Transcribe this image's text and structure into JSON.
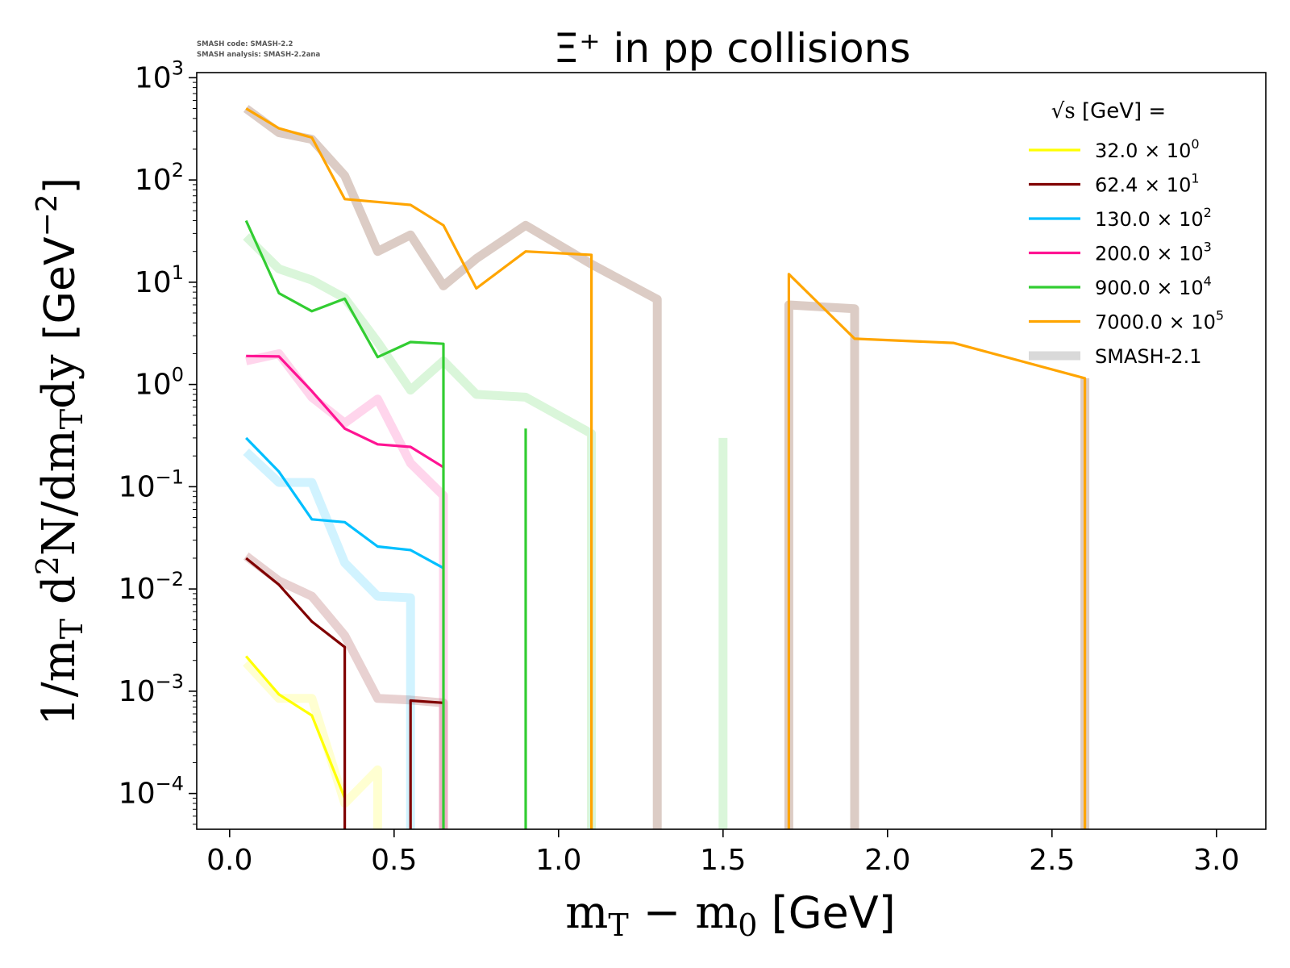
{
  "meta": {
    "watermark_line1": "SMASH code:      SMASH-2.2",
    "watermark_line2": "SMASH analysis: SMASH-2.2ana"
  },
  "chart_data": {
    "type": "line",
    "title": "Ξ⁺ in pp collisions",
    "xlabel_math": "m",
    "xlabel_sub": "T",
    "xlabel_minus": " − m",
    "xlabel_sub2": "0",
    "xlabel_unit": " [GeV]",
    "ylabel_part1": "1/m",
    "ylabel_sub1": "T",
    "ylabel_part2": " d",
    "ylabel_sup": "2",
    "ylabel_part3": "N/dm",
    "ylabel_sub2": "T",
    "ylabel_part4": "dy ",
    "ylabel_unit": "[GeV",
    "ylabel_unit_sup": "−2",
    "ylabel_unit_end": "]",
    "xlim": [
      -0.1,
      3.15
    ],
    "ylim_log10": [
      -4.35,
      3.05
    ],
    "yscale": "log",
    "x_ticks": [
      0.0,
      0.5,
      1.0,
      1.5,
      2.0,
      2.5,
      3.0
    ],
    "x_tick_labels": [
      "0.0",
      "0.5",
      "1.0",
      "1.5",
      "2.0",
      "2.5",
      "3.0"
    ],
    "y_ticks": [
      {
        "exp": 3,
        "label_base": "10",
        "label_exp": "3"
      },
      {
        "exp": 2,
        "label_base": "10",
        "label_exp": "2"
      },
      {
        "exp": 1,
        "label_base": "10",
        "label_exp": "1"
      },
      {
        "exp": 0,
        "label_base": "10",
        "label_exp": "0"
      },
      {
        "exp": -1,
        "label_base": "10",
        "label_exp": "−1"
      },
      {
        "exp": -2,
        "label_base": "10",
        "label_exp": "−2"
      },
      {
        "exp": -3,
        "label_base": "10",
        "label_exp": "−3"
      },
      {
        "exp": -4,
        "label_base": "10",
        "label_exp": "−4"
      }
    ],
    "legend": {
      "title_root": "√s",
      "title_rest": "  [GeV] =",
      "placement": "top-right"
    },
    "series": [
      {
        "name": "32.0 × 10",
        "name_exp": "0",
        "color": "#ffff00",
        "x": [
          0.05,
          0.15,
          0.25,
          0.35
        ],
        "y": [
          0.0022,
          0.00093,
          0.00058,
          9e-05
        ]
      },
      {
        "name": "62.4 × 10",
        "name_exp": "1",
        "color": "#800000",
        "x": [
          0.05,
          0.15,
          0.25,
          0.35,
          0.35,
          null,
          0.55,
          0.55,
          0.65
        ],
        "y": [
          0.02,
          0.011,
          0.0048,
          0.0027,
          1e-07,
          null,
          1e-07,
          0.00081,
          0.00077
        ]
      },
      {
        "name": "130.0 × 10",
        "name_exp": "2",
        "color": "#00bfff",
        "x": [
          0.05,
          0.15,
          0.25,
          0.35,
          0.45,
          0.55,
          0.65
        ],
        "y": [
          0.3,
          0.14,
          0.048,
          0.045,
          0.026,
          0.024,
          0.016
        ]
      },
      {
        "name": "200.0 × 10",
        "name_exp": "3",
        "color": "#ff1493",
        "x": [
          0.05,
          0.15,
          0.25,
          0.35,
          0.45,
          0.55,
          0.65
        ],
        "y": [
          1.9,
          1.88,
          0.86,
          0.37,
          0.26,
          0.245,
          0.155
        ]
      },
      {
        "name": "900.0 × 10",
        "name_exp": "4",
        "color": "#32cd32",
        "x": [
          0.05,
          0.15,
          0.25,
          0.35,
          0.45,
          0.55,
          0.65,
          0.65,
          null,
          0.9,
          0.9
        ],
        "y": [
          40,
          7.8,
          5.2,
          6.9,
          1.85,
          2.6,
          2.5,
          1e-07,
          null,
          1e-07,
          0.37
        ]
      },
      {
        "name": "7000.0 × 10",
        "name_exp": "5",
        "color": "#ffa500",
        "x": [
          0.05,
          0.15,
          0.25,
          0.35,
          0.55,
          0.65,
          0.75,
          0.9,
          1.1,
          1.1,
          null,
          1.7,
          1.7,
          1.9,
          2.2,
          2.6,
          2.6
        ],
        "y": [
          500,
          320,
          260,
          65,
          57,
          36,
          8.7,
          20,
          18.5,
          1e-07,
          null,
          1e-07,
          12,
          2.8,
          2.55,
          1.15,
          1e-07
        ]
      }
    ],
    "reference_label": "SMASH-2.1",
    "reference_series": [
      {
        "ref_of": "32.0",
        "color": "#ffff00",
        "x": [
          0.05,
          0.15,
          0.25,
          0.35,
          0.45,
          0.45
        ],
        "y": [
          0.0019,
          0.00085,
          0.00085,
          8e-05,
          0.00017,
          1e-07
        ]
      },
      {
        "ref_of": "62.4",
        "color": "#800000",
        "x": [
          0.05,
          0.15,
          0.25,
          0.35,
          0.45,
          0.55,
          0.65,
          0.65
        ],
        "y": [
          0.021,
          0.012,
          0.0085,
          0.0035,
          0.00085,
          0.00082,
          0.00077,
          1e-07
        ]
      },
      {
        "ref_of": "130.0",
        "color": "#00bfff",
        "x": [
          0.05,
          0.15,
          0.25,
          0.35,
          0.45,
          0.55,
          0.55
        ],
        "y": [
          0.22,
          0.11,
          0.11,
          0.018,
          0.0085,
          0.0082,
          1e-07
        ]
      },
      {
        "ref_of": "200.0",
        "color": "#ff1493",
        "x": [
          0.05,
          0.15,
          0.25,
          0.35,
          0.45,
          0.55,
          0.65,
          0.65
        ],
        "y": [
          1.7,
          2.0,
          0.75,
          0.42,
          0.72,
          0.17,
          0.082,
          1e-07
        ]
      },
      {
        "ref_of": "900.0",
        "color": "#32cd32",
        "x": [
          0.05,
          0.15,
          0.25,
          0.35,
          0.45,
          0.55,
          0.65,
          0.75,
          0.9,
          1.1,
          1.1,
          null,
          1.5,
          1.5
        ],
        "y": [
          28,
          13.5,
          10.5,
          7.0,
          2.6,
          0.88,
          1.7,
          0.8,
          0.75,
          0.33,
          1e-07,
          null,
          1e-07,
          0.3
        ]
      },
      {
        "ref_of": "7000.0",
        "color": "#b99a8c",
        "x": [
          0.05,
          0.15,
          0.25,
          0.35,
          0.45,
          0.55,
          0.65,
          0.75,
          0.9,
          1.1,
          1.3,
          1.3,
          null,
          1.7,
          1.7,
          1.9,
          1.9,
          null,
          2.6,
          2.6
        ],
        "y": [
          500,
          290,
          250,
          110,
          20,
          29,
          9.2,
          17,
          36,
          15,
          6.8,
          1e-07,
          null,
          1e-07,
          6.0,
          5.5,
          1e-07,
          null,
          1e-07,
          1.15
        ]
      }
    ],
    "reference_legend_color": "#d9d9d9",
    "grid": false
  }
}
